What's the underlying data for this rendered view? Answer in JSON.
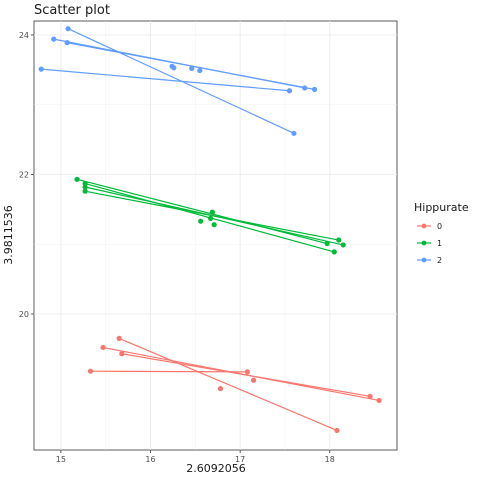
{
  "chart_data": {
    "type": "scatter",
    "title": "Scatter plot",
    "xlabel": "2.6092056",
    "ylabel": "3.9811536",
    "xlim": [
      14.7,
      18.75
    ],
    "ylim": [
      18.05,
      24.2
    ],
    "x_ticks": [
      15,
      16,
      17,
      18
    ],
    "y_ticks": [
      20,
      22,
      24
    ],
    "grid": true,
    "legend": {
      "title": "Hippurate",
      "position": "right"
    },
    "center": [
      16.35,
      20.93
    ],
    "series": [
      {
        "name": "0",
        "color": "#F8766D",
        "points": [
          [
            15.65,
            19.65
          ],
          [
            15.47,
            19.52
          ],
          [
            15.68,
            19.43
          ],
          [
            15.33,
            19.18
          ],
          [
            17.08,
            19.17
          ],
          [
            17.15,
            19.05
          ],
          [
            16.78,
            18.93
          ],
          [
            18.45,
            18.82
          ],
          [
            18.55,
            18.76
          ],
          [
            18.08,
            18.33
          ]
        ],
        "fit_center": [
          16.8,
          19.08
        ],
        "fit_lines": [
          [
            [
              15.65,
              19.65
            ],
            [
              18.08,
              18.33
            ]
          ],
          [
            [
              15.47,
              19.52
            ],
            [
              18.55,
              18.76
            ]
          ],
          [
            [
              15.68,
              19.43
            ],
            [
              18.45,
              18.82
            ]
          ],
          [
            [
              15.33,
              19.18
            ],
            [
              17.08,
              19.17
            ]
          ]
        ]
      },
      {
        "name": "1",
        "color": "#00BA38",
        "points": [
          [
            15.18,
            21.93
          ],
          [
            15.27,
            21.87
          ],
          [
            15.27,
            21.82
          ],
          [
            15.27,
            21.76
          ],
          [
            16.69,
            21.46
          ],
          [
            16.67,
            21.37
          ],
          [
            16.56,
            21.33
          ],
          [
            16.71,
            21.28
          ],
          [
            18.1,
            21.06
          ],
          [
            18.15,
            20.99
          ],
          [
            17.97,
            21.01
          ],
          [
            18.05,
            20.89
          ]
        ],
        "fit_center": [
          16.7,
          21.4
        ],
        "fit_lines": [
          [
            [
              15.27,
              21.87
            ],
            [
              18.05,
              20.89
            ]
          ],
          [
            [
              15.27,
              21.82
            ],
            [
              18.15,
              20.99
            ]
          ],
          [
            [
              15.27,
              21.76
            ],
            [
              18.1,
              21.06
            ]
          ],
          [
            [
              15.18,
              21.93
            ],
            [
              17.97,
              21.01
            ]
          ]
        ]
      },
      {
        "name": "2",
        "color": "#619CFF",
        "points": [
          [
            15.08,
            24.09
          ],
          [
            14.92,
            23.94
          ],
          [
            15.07,
            23.89
          ],
          [
            14.78,
            23.51
          ],
          [
            16.24,
            23.55
          ],
          [
            16.26,
            23.53
          ],
          [
            16.46,
            23.52
          ],
          [
            16.55,
            23.49
          ],
          [
            17.72,
            23.24
          ],
          [
            17.83,
            23.22
          ],
          [
            17.55,
            23.2
          ],
          [
            17.6,
            22.59
          ]
        ],
        "fit_center": [
          16.35,
          23.5
        ],
        "fit_lines": [
          [
            [
              15.08,
              24.09
            ],
            [
              17.6,
              22.59
            ]
          ],
          [
            [
              14.92,
              23.94
            ],
            [
              17.72,
              23.24
            ]
          ],
          [
            [
              15.07,
              23.89
            ],
            [
              17.83,
              23.22
            ]
          ],
          [
            [
              14.78,
              23.51
            ],
            [
              17.55,
              23.2
            ]
          ]
        ]
      }
    ]
  }
}
